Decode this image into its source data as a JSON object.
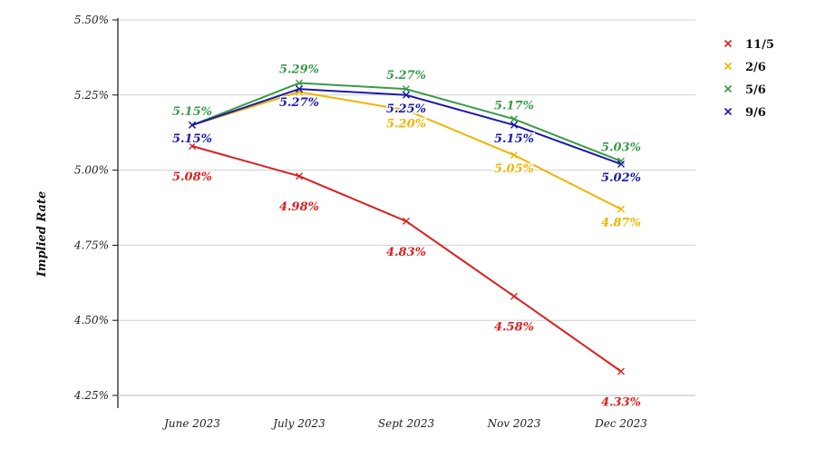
{
  "chart_data": {
    "type": "line",
    "title": "",
    "xlabel": "",
    "ylabel": "Implied Rate",
    "categories": [
      "June 2023",
      "July 2023",
      "Sept 2023",
      "Nov 2023",
      "Dec 2023"
    ],
    "ylim": [
      4.25,
      5.5
    ],
    "yticks": [
      4.25,
      4.5,
      4.75,
      5.0,
      5.25,
      5.5
    ],
    "ytick_labels": [
      "4.25%",
      "4.50%",
      "4.75%",
      "5.00%",
      "5.25%",
      "5.50%"
    ],
    "grid": true,
    "legend_position": "top-right",
    "series": [
      {
        "name": "11/5",
        "color": "#d92020",
        "values": [
          5.08,
          4.98,
          4.83,
          4.58,
          4.33
        ],
        "labels": [
          "5.08%",
          "4.98%",
          "4.83%",
          "4.58%",
          "4.33%"
        ]
      },
      {
        "name": "2/6",
        "color": "#f0b400",
        "values": [
          5.15,
          5.26,
          5.2,
          5.05,
          4.87
        ],
        "labels": [
          "",
          "",
          "5.20%",
          "5.05%",
          "4.87%"
        ]
      },
      {
        "name": "5/6",
        "color": "#3a9a4a",
        "values": [
          5.15,
          5.29,
          5.27,
          5.17,
          5.03
        ],
        "labels": [
          "5.15%",
          "5.29%",
          "5.27%",
          "5.17%",
          "5.03%"
        ]
      },
      {
        "name": "9/6",
        "color": "#1a1aa8",
        "values": [
          5.15,
          5.27,
          5.25,
          5.15,
          5.02
        ],
        "labels": [
          "5.15%",
          "5.27%",
          "5.25%",
          "5.15%",
          "5.02%"
        ]
      }
    ]
  }
}
